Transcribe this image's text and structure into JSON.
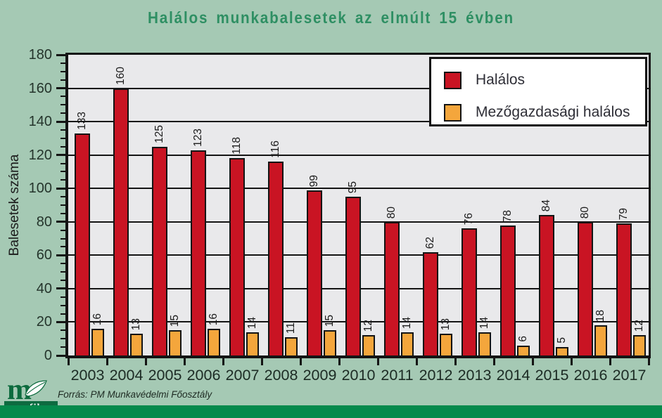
{
  "title": "Halálos munkabalesetek az elmúlt 15 évben",
  "source": "Forrás: PM Munkavédelmi Főosztály",
  "logo": {
    "letter": "m",
    "label": "grafika"
  },
  "colors": {
    "background": "#a5c9b4",
    "title": "#2e8f63",
    "plot_background": "#e9e9eb",
    "axis_line": "#141414",
    "fatal_red": "#c91423",
    "agricultural_orange": "#f4a63c",
    "footer_strip_green": "#058a4c",
    "logo_green": "#0d6b40"
  },
  "chart_data": {
    "type": "bar",
    "title": "Halálos munkabalesetek az elmúlt 15 évben",
    "categories": [
      "2003",
      "2004",
      "2005",
      "2006",
      "2007",
      "2008",
      "2009",
      "2010",
      "2011",
      "2012",
      "2013",
      "2014",
      "2015",
      "2016",
      "2017"
    ],
    "series": [
      {
        "name": "Halálos",
        "color": "#c91423",
        "values": [
          133,
          160,
          125,
          123,
          118,
          116,
          99,
          95,
          80,
          62,
          76,
          78,
          84,
          80,
          79
        ]
      },
      {
        "name": "Mezőgazdasági halálos",
        "color": "#f4a63c",
        "values": [
          16,
          13,
          15,
          16,
          14,
          11,
          15,
          12,
          14,
          13,
          14,
          6,
          5,
          18,
          12
        ]
      }
    ],
    "xlabel": "",
    "ylabel": "Balesetek száma",
    "ylim": [
      0,
      180
    ],
    "ytick_major": 20,
    "ytick_minor": 5,
    "grid": true,
    "bar_value_labels": "rotated-90-above-bars",
    "legend_position": "top-right"
  }
}
